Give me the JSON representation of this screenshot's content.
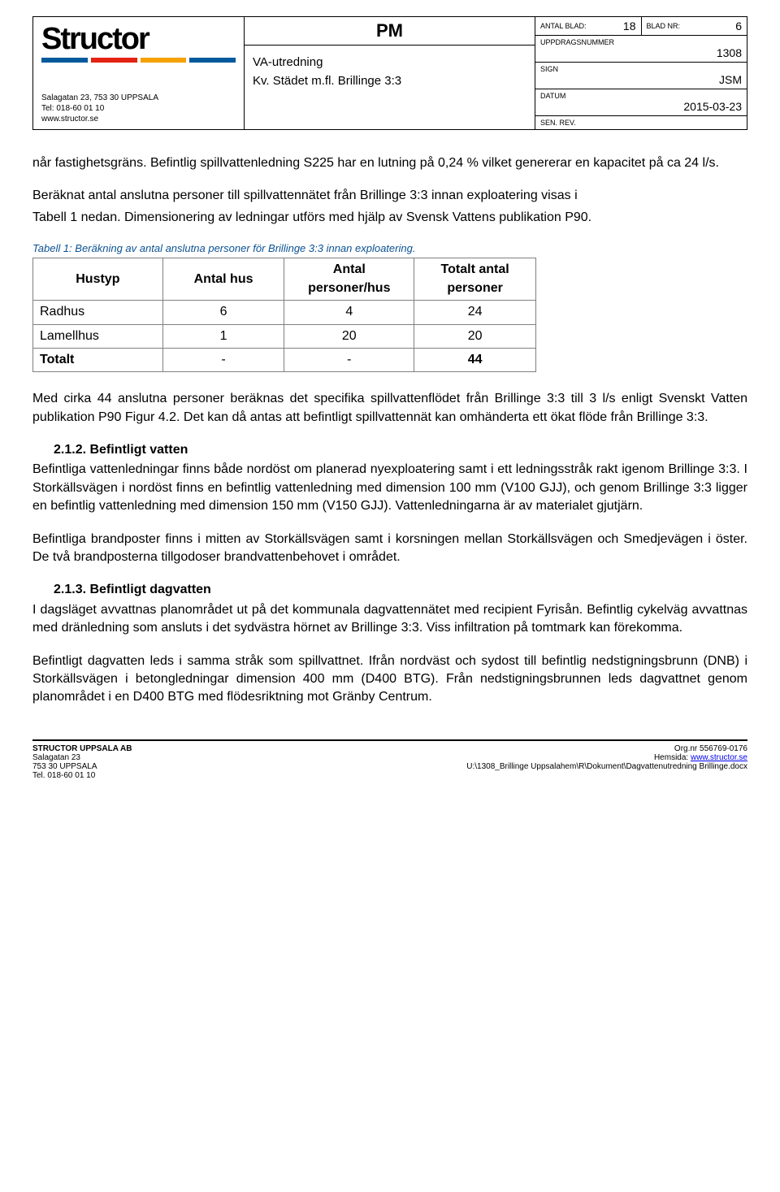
{
  "logo": {
    "text": "Structor",
    "bar_colors": [
      "#005a9c",
      "#e42313",
      "#f5a100",
      "#005a9c"
    ]
  },
  "company": {
    "address_line1": "Salagatan 23, 753 30 UPPSALA",
    "tel": "Tel: 018-60 01 10",
    "web": "www.structor.se"
  },
  "header": {
    "pm": "PM",
    "line1": "VA-utredning",
    "line2": "Kv. Städet m.fl. Brillinge 3:3",
    "pages_label": "ANTAL BLAD:",
    "pages_value": "18",
    "page_label": "BLAD NR:",
    "page_value": "6",
    "uppdrag_label": "UPPDRAGSNUMMER",
    "uppdrag_value": "1308",
    "sign_label": "SIGN",
    "sign_value": "JSM",
    "datum_label": "DATUM",
    "datum_value": "2015-03-23",
    "rev_label": "SEN. REV."
  },
  "body": {
    "p1": "når fastighetsgräns. Befintlig spillvattenledning S225 har en lutning på 0,24 % vilket genererar en kapacitet på ca 24 l/s.",
    "p2": "Beräknat antal anslutna personer till spillvattennätet från Brillinge 3:3 innan exploatering visas i",
    "p3": "Tabell 1 nedan. Dimensionering av ledningar utförs med hjälp av Svensk Vattens publikation P90.",
    "table": {
      "caption": "Tabell 1: Beräkning av antal anslutna personer för Brillinge 3:3 innan exploatering.",
      "columns": [
        "Hustyp",
        "Antal hus",
        "Antal personer/hus",
        "Totalt antal personer"
      ],
      "rows": [
        [
          "Radhus",
          "6",
          "4",
          "24"
        ],
        [
          "Lamellhus",
          "1",
          "20",
          "20"
        ],
        [
          "Totalt",
          "-",
          "-",
          "44"
        ]
      ],
      "col_widths": [
        "160px",
        "150px",
        "160px",
        "150px"
      ],
      "border_color": "#808080",
      "caption_color": "#0a5293"
    },
    "p4": "Med cirka 44 anslutna personer beräknas det specifika spillvattenflödet från Brillinge 3:3 till 3 l/s enligt Svenskt Vatten publikation P90 Figur 4.2. Det kan då antas att befintligt spillvattennät kan omhänderta ett ökat flöde från Brillinge 3:3.",
    "h212": "2.1.2. Befintligt vatten",
    "p5": "Befintliga vattenledningar finns både nordöst om planerad nyexploatering samt i ett ledningsstråk rakt igenom Brillinge 3:3. I Storkällsvägen i nordöst finns en befintlig vattenledning med dimension 100 mm (V100 GJJ), och genom Brillinge 3:3 ligger en befintlig vattenledning med dimension 150 mm (V150 GJJ). Vattenledningarna är av materialet gjutjärn.",
    "p6": "Befintliga brandposter finns i mitten av Storkällsvägen samt i korsningen mellan Storkällsvägen och Smedjevägen i öster. De två brandposterna tillgodoser brandvattenbehovet i området.",
    "h213": "2.1.3. Befintligt dagvatten",
    "p7": "I dagsläget avvattnas planområdet ut på det kommunala dagvattennätet med recipient Fyrisån. Befintlig cykelväg avvattnas med dränledning som ansluts i det sydvästra hörnet av Brillinge 3:3. Viss infiltration på tomtmark kan förekomma.",
    "p8": "Befintligt dagvatten leds i samma stråk som spillvattnet. Ifrån nordväst och sydost till befintlig nedstigningsbrunn (DNB) i Storkällsvägen i betongledningar dimension 400 mm (D400 BTG). Från nedstigningsbrunnen leds dagvattnet genom planområdet i en D400 BTG med flödesriktning mot Gränby Centrum."
  },
  "footer": {
    "left": {
      "l1": "STRUCTOR UPPSALA AB",
      "l2": "Salagatan 23",
      "l3": "753 30 UPPSALA",
      "l4": "Tel. 018-60 01 10"
    },
    "right": {
      "l1": "Org.nr 556769-0176",
      "l2_prefix": "Hemsida: ",
      "l2_link": "www.structor.se",
      "l3": "U:\\1308_Brillinge Uppsalahem\\R\\Dokument\\Dagvattenutredning Brillinge.docx"
    }
  }
}
